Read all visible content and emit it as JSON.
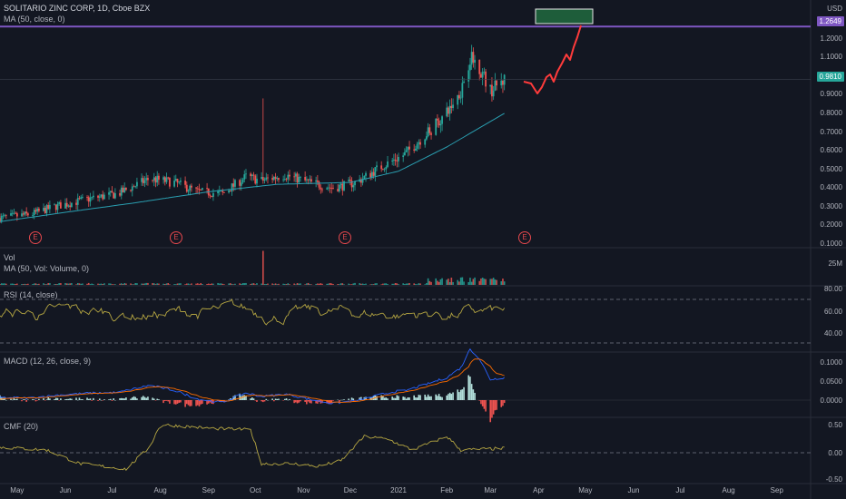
{
  "header": {
    "title": "SOLITARIO ZINC CORP, 1D, Cboe BZX",
    "ma_label": "MA (50, close, 0)"
  },
  "price_axis": {
    "currency": "USD",
    "ticks": [
      "1.3000",
      "1.2000",
      "1.1000",
      "1.0000",
      "0.9000",
      "0.8000",
      "0.7000",
      "0.6000",
      "0.5000",
      "0.4000",
      "0.3000",
      "0.2000",
      "0.1000"
    ],
    "hline_tag": "1.2649",
    "last_price_tag": "0.9810"
  },
  "earnings_marker": "E",
  "volume_panel": {
    "title": "Vol",
    "subtitle": "MA (50, Vol: Volume, 0)",
    "tick": "25M"
  },
  "rsi_panel": {
    "title": "RSI (14, close)",
    "ticks": [
      "80.00",
      "60.00",
      "40.00"
    ]
  },
  "macd_panel": {
    "title": "MACD (12, 26, close, 9)",
    "ticks": [
      "0.1000",
      "0.0500",
      "0.0000"
    ]
  },
  "cmf_panel": {
    "title": "CMF (20)",
    "ticks": [
      "0.50",
      "0.00",
      "-0.50"
    ]
  },
  "time_axis": [
    "May",
    "Jun",
    "Jul",
    "Aug",
    "Sep",
    "Oct",
    "Nov",
    "Dec",
    "2021",
    "Feb",
    "Mar",
    "Apr",
    "May",
    "Jun",
    "Jul",
    "Aug",
    "Sep"
  ],
  "colors": {
    "background": "#131722",
    "up": "#26a69a",
    "down": "#ef5350",
    "ma": "#2a9fb1",
    "hline": "#7e57c2",
    "projection": "#ff3b3b",
    "rsi": "#b5a642",
    "macd": "#2962ff",
    "signal": "#ff6d00",
    "cmf": "#b5a642",
    "target_box": "#1e5d3a"
  },
  "chart_data": {
    "type": "candlestick",
    "x_range": [
      "2020-04-20",
      "2021-09-30"
    ],
    "y_range": [
      0.08,
      1.37
    ],
    "hline_value": 1.2649,
    "last_price": 0.981,
    "price_anchors": [
      [
        "2020-04-20",
        0.24
      ],
      [
        "2020-05-10",
        0.26
      ],
      [
        "2020-05-25",
        0.3
      ],
      [
        "2020-06-15",
        0.34
      ],
      [
        "2020-07-05",
        0.37
      ],
      [
        "2020-07-25",
        0.45
      ],
      [
        "2020-08-10",
        0.43
      ],
      [
        "2020-08-25",
        0.38
      ],
      [
        "2020-09-10",
        0.37
      ],
      [
        "2020-09-25",
        0.46
      ],
      [
        "2020-10-05",
        0.44
      ],
      [
        "2020-10-20",
        0.47
      ],
      [
        "2020-11-05",
        0.43
      ],
      [
        "2020-11-20",
        0.4
      ],
      [
        "2020-12-05",
        0.43
      ],
      [
        "2020-12-20",
        0.51
      ],
      [
        "2021-01-05",
        0.58
      ],
      [
        "2021-01-20",
        0.7
      ],
      [
        "2021-02-01",
        0.8
      ],
      [
        "2021-02-10",
        0.92
      ],
      [
        "2021-02-16",
        1.1
      ],
      [
        "2021-02-22",
        1.05
      ],
      [
        "2021-03-01",
        0.92
      ],
      [
        "2021-03-10",
        0.98
      ]
    ],
    "ma50_anchors": [
      [
        "2020-04-20",
        0.22
      ],
      [
        "2020-06-01",
        0.27
      ],
      [
        "2020-07-15",
        0.32
      ],
      [
        "2020-09-01",
        0.38
      ],
      [
        "2020-10-15",
        0.42
      ],
      [
        "2020-12-01",
        0.43
      ],
      [
        "2021-01-01",
        0.49
      ],
      [
        "2021-02-01",
        0.62
      ],
      [
        "2021-03-10",
        0.8
      ]
    ],
    "volume_spike_date": "2020-10-06",
    "rsi_levels": [
      70,
      30
    ],
    "cmf_zero": 0
  }
}
